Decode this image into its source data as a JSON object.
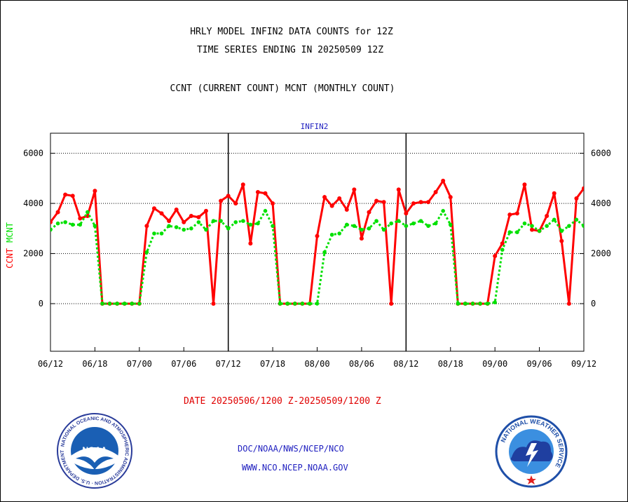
{
  "header": {
    "title_line1": "HRLY MODEL INFIN2 DATA COUNTS for 12Z",
    "title_line2": "TIME SERIES ENDING IN 20250509 12Z",
    "title_line3": "CCNT (CURRENT COUNT) MCNT (MONTHLY COUNT)"
  },
  "footer": {
    "date_range": "DATE 20250506/1200 Z-20250509/1200 Z",
    "credit_org": "DOC/NOAA/NWS/NCEP/NCO",
    "credit_url": "WWW.NCO.NCEP.NOAA.GOV"
  },
  "logos": {
    "noaa_text": "NOAA",
    "noaa_ring": "NATIONAL OCEANIC AND ATMOSPHERIC ADMINISTRATION · U.S. DEPARTMENT OF COMMERCE",
    "nws_ring": "NATIONAL WEATHER SERVICE"
  },
  "colors": {
    "ccnt": "#ff0000",
    "mcnt": "#00e000",
    "title": "#2020c0",
    "date": "#e00000"
  },
  "chart_data": {
    "type": "line",
    "title": "INFIN2",
    "ylabel_left": [
      "CCNT",
      "MCNT"
    ],
    "yticks": [
      0,
      2000,
      4000,
      6000
    ],
    "ylim": [
      -1900,
      6800
    ],
    "xlim": [
      0,
      72
    ],
    "xtick_positions": [
      0,
      6,
      12,
      18,
      24,
      30,
      36,
      42,
      48,
      54,
      60,
      66,
      72
    ],
    "xtick_labels": [
      "06/12",
      "06/18",
      "07/00",
      "07/06",
      "07/12",
      "07/18",
      "08/00",
      "08/06",
      "08/12",
      "08/18",
      "09/00",
      "09/06",
      "09/12"
    ],
    "day_dividers": [
      24,
      48
    ],
    "grid": true,
    "series": [
      {
        "name": "CCNT",
        "values": [
          3250,
          3650,
          4350,
          4300,
          3400,
          3500,
          4500,
          0,
          0,
          0,
          0,
          0,
          0,
          3100,
          3800,
          3600,
          3300,
          3750,
          3250,
          3500,
          3450,
          3700,
          0,
          4100,
          4300,
          4000,
          4750,
          2400,
          4450,
          4400,
          4000,
          0,
          0,
          0,
          0,
          0,
          2700,
          4250,
          3900,
          4200,
          3750,
          4550,
          2600,
          3650,
          4100,
          4050,
          0,
          4550,
          3600,
          4000,
          4050,
          4050,
          4450,
          4900,
          4250,
          0,
          0,
          0,
          0,
          0,
          1900,
          2400,
          3550,
          3600,
          4750,
          2950,
          2900,
          3500,
          4400,
          2500,
          0,
          4200,
          4600
        ]
      },
      {
        "name": "MCNT",
        "values": [
          2950,
          3200,
          3250,
          3150,
          3150,
          3650,
          3100,
          0,
          0,
          0,
          0,
          0,
          0,
          2050,
          2800,
          2800,
          3100,
          3050,
          2950,
          3000,
          3250,
          2950,
          3300,
          3300,
          3000,
          3250,
          3300,
          3150,
          3200,
          3700,
          3100,
          0,
          0,
          0,
          0,
          0,
          0,
          2050,
          2750,
          2800,
          3150,
          3100,
          2950,
          3000,
          3300,
          2950,
          3200,
          3300,
          3100,
          3200,
          3300,
          3100,
          3200,
          3700,
          3150,
          0,
          0,
          0,
          0,
          0,
          50,
          2150,
          2850,
          2850,
          3200,
          3100,
          2900,
          3100,
          3350,
          2900,
          3100,
          3350,
          3100
        ]
      }
    ]
  }
}
